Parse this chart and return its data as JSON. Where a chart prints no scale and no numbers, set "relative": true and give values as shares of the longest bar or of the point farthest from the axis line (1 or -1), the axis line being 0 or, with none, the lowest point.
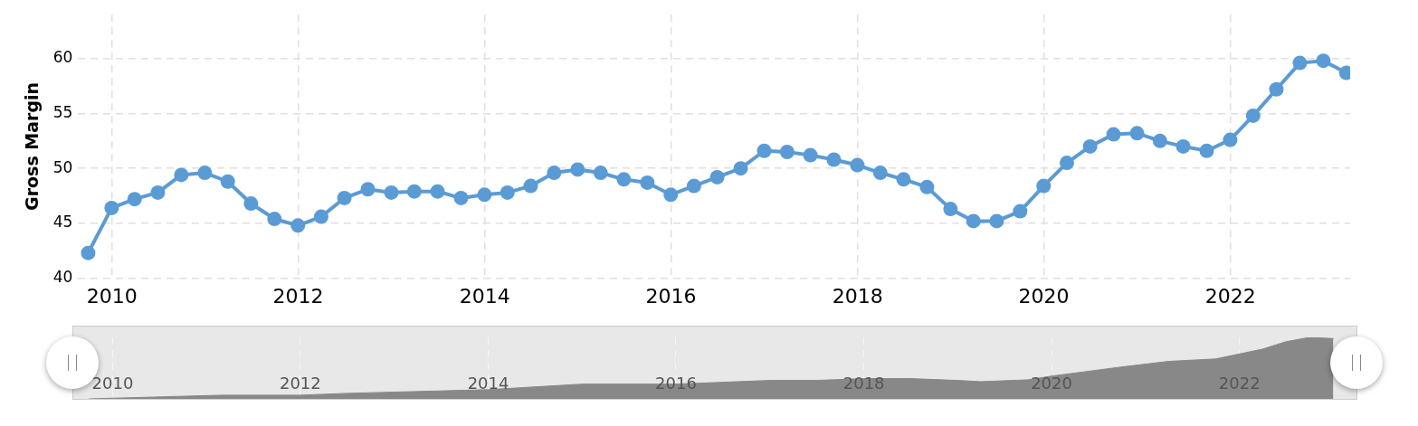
{
  "chart_data": [
    {
      "type": "line",
      "ylabel": "Gross Margin",
      "x": [
        "2009-09-30",
        "2009-12-31",
        "2010-03-31",
        "2010-06-30",
        "2010-09-30",
        "2010-12-31",
        "2011-03-31",
        "2011-06-30",
        "2011-09-30",
        "2011-12-31",
        "2012-03-31",
        "2012-06-30",
        "2012-09-30",
        "2012-12-31",
        "2013-03-31",
        "2013-06-30",
        "2013-09-30",
        "2013-12-31",
        "2014-03-31",
        "2014-06-30",
        "2014-09-30",
        "2014-12-31",
        "2015-03-31",
        "2015-06-30",
        "2015-09-30",
        "2015-12-31",
        "2016-03-31",
        "2016-06-30",
        "2016-09-30",
        "2016-12-31",
        "2017-03-31",
        "2017-06-30",
        "2017-09-30",
        "2017-12-31",
        "2018-03-31",
        "2018-06-30",
        "2018-09-30",
        "2018-12-31",
        "2019-03-31",
        "2019-06-30",
        "2019-09-30",
        "2019-12-31",
        "2020-03-31",
        "2020-06-30",
        "2020-09-30",
        "2020-12-31",
        "2021-03-31",
        "2021-06-30",
        "2021-09-30",
        "2021-12-31",
        "2022-03-31",
        "2022-06-30",
        "2022-09-30",
        "2022-12-31",
        "2023-03-31"
      ],
      "series": [
        {
          "color": "#5b9bd5",
          "values": [
            42.3,
            46.4,
            47.2,
            47.8,
            49.4,
            49.6,
            48.8,
            46.8,
            45.4,
            44.8,
            45.6,
            47.3,
            48.1,
            47.8,
            47.9,
            47.9,
            47.3,
            47.6,
            47.8,
            48.4,
            49.6,
            49.9,
            49.6,
            49.0,
            48.7,
            47.6,
            48.4,
            49.2,
            50.0,
            51.6,
            51.5,
            51.2,
            50.8,
            50.3,
            49.6,
            49.0,
            48.3,
            46.3,
            45.2,
            45.2,
            46.1,
            48.4,
            50.5,
            52.0,
            53.1,
            53.2,
            52.5,
            52.0,
            51.6,
            52.6,
            54.8,
            57.2,
            59.6,
            59.8,
            58.7
          ]
        }
      ],
      "xlim": [
        "2009-08-22",
        "2023-04-15"
      ],
      "ylim": [
        40,
        64
      ],
      "xticks": [
        "2010",
        "2012",
        "2014",
        "2016",
        "2018",
        "2020",
        "2022"
      ],
      "yticks": [
        40,
        45,
        50,
        55,
        60
      ],
      "grid": true,
      "marker": "circle",
      "line_style": "solid"
    },
    {
      "type": "area",
      "relative": true,
      "x": [
        "2009-10",
        "2011-03",
        "2012-01",
        "2012-07",
        "2013-07",
        "2014-01",
        "2015-01",
        "2016-01",
        "2017-01",
        "2017-07",
        "2018-01",
        "2018-07",
        "2019-01",
        "2019-04",
        "2019-10",
        "2020-01",
        "2020-10",
        "2021-04",
        "2021-10",
        "2022-04",
        "2022-07",
        "2022-10",
        "2023-01"
      ],
      "series": [
        {
          "color": "#888888",
          "values": [
            0,
            0.06,
            0.06,
            0.09,
            0.13,
            0.15,
            0.24,
            0.24,
            0.3,
            0.3,
            0.33,
            0.33,
            0.3,
            0.28,
            0.31,
            0.37,
            0.52,
            0.61,
            0.65,
            0.81,
            0.93,
            1,
            0.98
          ]
        }
      ],
      "xlim": [
        "2009-08",
        "2023-04"
      ],
      "xticks": [
        "2010",
        "2012",
        "2014",
        "2016",
        "2018",
        "2020",
        "2022"
      ],
      "grid": "x"
    }
  ]
}
